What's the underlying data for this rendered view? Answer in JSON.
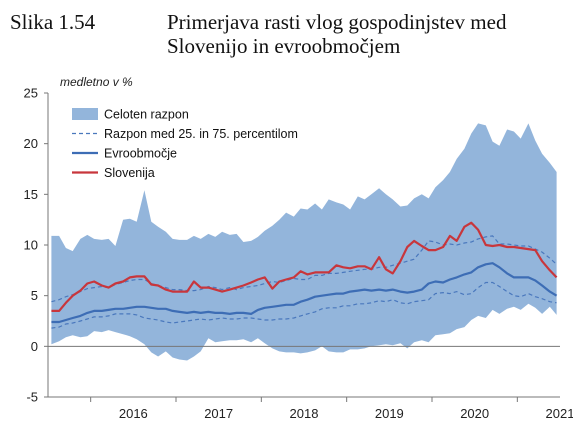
{
  "figure": {
    "label": "Slika 1.54",
    "title": "Primerjava rasti vlog gospodinjstev med Slovenijo in evroobmočjem"
  },
  "chart_data": {
    "type": "area",
    "unit": "medletno v %",
    "ylim": [
      -5,
      25
    ],
    "y_ticks": [
      -5,
      0,
      5,
      10,
      15,
      20,
      25
    ],
    "x_ticks": [
      "2016",
      "2017",
      "2018",
      "2019",
      "2020",
      "2021"
    ],
    "xlim": [
      2015.5,
      2021.5
    ],
    "grid": false,
    "legend_position": "top-left",
    "colors": {
      "range": "#93b5db",
      "percentile": "#4a78bd",
      "euro": "#3d6db5",
      "slovenia": "#c8363c"
    },
    "series": [
      {
        "name": "Celoten razpon",
        "type": "band",
        "x": [
          2015.54,
          2015.63,
          2015.71,
          2015.79,
          2015.88,
          2015.96,
          2016.04,
          2016.13,
          2016.21,
          2016.29,
          2016.38,
          2016.46,
          2016.54,
          2016.63,
          2016.71,
          2016.79,
          2016.88,
          2016.96,
          2017.04,
          2017.13,
          2017.21,
          2017.29,
          2017.38,
          2017.46,
          2017.54,
          2017.63,
          2017.71,
          2017.79,
          2017.88,
          2017.96,
          2018.04,
          2018.13,
          2018.21,
          2018.29,
          2018.38,
          2018.46,
          2018.54,
          2018.63,
          2018.71,
          2018.79,
          2018.88,
          2018.96,
          2019.04,
          2019.13,
          2019.21,
          2019.29,
          2019.38,
          2019.46,
          2019.54,
          2019.63,
          2019.71,
          2019.79,
          2019.88,
          2019.96,
          2020.04,
          2020.13,
          2020.21,
          2020.29,
          2020.38,
          2020.46,
          2020.54,
          2020.63,
          2020.71,
          2020.79,
          2020.88,
          2020.96,
          2021.04,
          2021.13,
          2021.21,
          2021.29,
          2021.38,
          2021.46
        ],
        "upper": [
          10.9,
          10.9,
          9.7,
          9.4,
          10.6,
          11.0,
          10.6,
          10.5,
          10.6,
          9.9,
          12.5,
          12.6,
          12.3,
          15.4,
          12.3,
          11.8,
          11.3,
          10.6,
          10.5,
          10.5,
          10.9,
          10.6,
          11.1,
          10.8,
          11.3,
          11.0,
          11.1,
          10.3,
          10.4,
          10.8,
          11.4,
          11.9,
          12.5,
          13.2,
          12.8,
          13.6,
          13.5,
          14.1,
          13.5,
          14.5,
          14.2,
          14.0,
          13.5,
          14.8,
          14.5,
          15.0,
          15.6,
          15.0,
          14.5,
          13.8,
          13.9,
          14.6,
          15.0,
          14.6,
          15.7,
          16.4,
          17.2,
          18.5,
          19.5,
          21.0,
          22.0,
          21.8,
          20.2,
          19.8,
          21.4,
          21.2,
          20.5,
          22.0,
          20.3,
          19.0,
          18.1,
          17.2
        ],
        "lower": [
          0.2,
          0.5,
          0.9,
          1.1,
          0.9,
          1.0,
          1.5,
          1.4,
          1.6,
          1.4,
          1.2,
          1.0,
          0.7,
          0.2,
          -0.6,
          -1.0,
          -0.5,
          -1.1,
          -1.3,
          -1.4,
          -1.0,
          -0.5,
          0.8,
          0.4,
          0.5,
          0.6,
          0.6,
          0.7,
          0.4,
          0.8,
          0.3,
          -0.2,
          -0.5,
          -0.6,
          -0.6,
          -0.7,
          -0.6,
          -0.4,
          0.0,
          -0.5,
          -0.6,
          -0.6,
          -0.3,
          -0.3,
          -0.2,
          0.0,
          0.1,
          0.2,
          0.1,
          0.3,
          -0.2,
          0.4,
          0.6,
          0.4,
          1.1,
          1.2,
          1.3,
          1.7,
          1.9,
          2.6,
          3.0,
          2.8,
          3.6,
          3.2,
          3.7,
          3.9,
          3.6,
          4.2,
          3.8,
          3.2,
          3.9,
          3.1
        ]
      },
      {
        "name": "Razpon med 25. in 75. percentilom",
        "type": "dashed-pair",
        "x": [
          2015.54,
          2015.63,
          2015.71,
          2015.79,
          2015.88,
          2015.96,
          2016.04,
          2016.13,
          2016.21,
          2016.29,
          2016.38,
          2016.46,
          2016.54,
          2016.63,
          2016.71,
          2016.79,
          2016.88,
          2016.96,
          2017.04,
          2017.13,
          2017.21,
          2017.29,
          2017.38,
          2017.46,
          2017.54,
          2017.63,
          2017.71,
          2017.79,
          2017.88,
          2017.96,
          2018.04,
          2018.13,
          2018.21,
          2018.29,
          2018.38,
          2018.46,
          2018.54,
          2018.63,
          2018.71,
          2018.79,
          2018.88,
          2018.96,
          2019.04,
          2019.13,
          2019.21,
          2019.29,
          2019.38,
          2019.46,
          2019.54,
          2019.63,
          2019.71,
          2019.79,
          2019.88,
          2019.96,
          2020.04,
          2020.13,
          2020.21,
          2020.29,
          2020.38,
          2020.46,
          2020.54,
          2020.63,
          2020.71,
          2020.79,
          2020.88,
          2020.96,
          2021.04,
          2021.13,
          2021.21,
          2021.29,
          2021.38,
          2021.46
        ],
        "upper": [
          4.4,
          4.6,
          4.9,
          5.1,
          5.4,
          5.7,
          5.8,
          5.9,
          5.8,
          6.1,
          6.3,
          6.5,
          6.6,
          6.6,
          6.2,
          6.0,
          5.8,
          5.6,
          5.6,
          5.5,
          5.5,
          5.6,
          5.9,
          5.8,
          5.6,
          5.8,
          5.6,
          5.8,
          5.9,
          6.0,
          6.2,
          6.4,
          6.3,
          6.5,
          6.7,
          6.6,
          6.6,
          7.0,
          7.0,
          7.2,
          7.2,
          7.3,
          7.4,
          7.5,
          7.6,
          7.6,
          7.8,
          7.8,
          8.0,
          8.2,
          8.4,
          8.6,
          9.5,
          10.4,
          10.3,
          10.0,
          10.1,
          10.0,
          10.2,
          10.3,
          10.6,
          10.8,
          10.9,
          10.1,
          10.1,
          10.0,
          9.9,
          9.9,
          9.6,
          9.3,
          8.7,
          8.1
        ],
        "lower": [
          1.8,
          1.9,
          2.2,
          2.3,
          2.5,
          2.7,
          2.9,
          2.9,
          3.0,
          3.2,
          3.2,
          3.2,
          3.1,
          2.8,
          2.7,
          2.6,
          2.4,
          2.3,
          2.4,
          2.5,
          2.6,
          2.7,
          2.6,
          2.7,
          2.8,
          2.7,
          2.7,
          2.8,
          2.8,
          2.7,
          2.6,
          2.6,
          2.7,
          2.7,
          2.8,
          3.0,
          3.2,
          3.4,
          3.7,
          3.8,
          3.8,
          4.0,
          4.0,
          4.2,
          4.2,
          4.3,
          4.5,
          4.4,
          4.6,
          4.3,
          4.2,
          4.4,
          4.5,
          4.6,
          5.2,
          5.3,
          5.2,
          5.4,
          5.1,
          5.2,
          5.8,
          6.3,
          6.3,
          5.9,
          5.4,
          5.0,
          4.9,
          5.2,
          4.9,
          4.7,
          4.4,
          4.3
        ]
      },
      {
        "name": "Evroobmočje",
        "type": "line",
        "x": [
          2015.54,
          2015.63,
          2015.71,
          2015.79,
          2015.88,
          2015.96,
          2016.04,
          2016.13,
          2016.21,
          2016.29,
          2016.38,
          2016.46,
          2016.54,
          2016.63,
          2016.71,
          2016.79,
          2016.88,
          2016.96,
          2017.04,
          2017.13,
          2017.21,
          2017.29,
          2017.38,
          2017.46,
          2017.54,
          2017.63,
          2017.71,
          2017.79,
          2017.88,
          2017.96,
          2018.04,
          2018.13,
          2018.21,
          2018.29,
          2018.38,
          2018.46,
          2018.54,
          2018.63,
          2018.71,
          2018.79,
          2018.88,
          2018.96,
          2019.04,
          2019.13,
          2019.21,
          2019.29,
          2019.38,
          2019.46,
          2019.54,
          2019.63,
          2019.71,
          2019.79,
          2019.88,
          2019.96,
          2020.04,
          2020.13,
          2020.21,
          2020.29,
          2020.38,
          2020.46,
          2020.54,
          2020.63,
          2020.71,
          2020.79,
          2020.88,
          2020.96,
          2021.04,
          2021.13,
          2021.21,
          2021.29,
          2021.38,
          2021.46
        ],
        "values": [
          2.4,
          2.4,
          2.6,
          2.8,
          3.0,
          3.3,
          3.5,
          3.5,
          3.6,
          3.7,
          3.7,
          3.8,
          3.9,
          3.9,
          3.8,
          3.7,
          3.7,
          3.5,
          3.4,
          3.3,
          3.4,
          3.3,
          3.4,
          3.3,
          3.3,
          3.2,
          3.3,
          3.3,
          3.2,
          3.6,
          3.8,
          3.9,
          4.0,
          4.1,
          4.1,
          4.4,
          4.6,
          4.9,
          5.0,
          5.1,
          5.2,
          5.2,
          5.4,
          5.5,
          5.6,
          5.5,
          5.6,
          5.5,
          5.6,
          5.4,
          5.3,
          5.4,
          5.6,
          6.2,
          6.4,
          6.3,
          6.6,
          6.8,
          7.1,
          7.3,
          7.8,
          8.1,
          8.2,
          7.8,
          7.2,
          6.8,
          6.8,
          6.8,
          6.5,
          6.0,
          5.4,
          5.0
        ]
      },
      {
        "name": "Slovenija",
        "type": "line",
        "x": [
          2015.54,
          2015.63,
          2015.71,
          2015.79,
          2015.88,
          2015.96,
          2016.04,
          2016.13,
          2016.21,
          2016.29,
          2016.38,
          2016.46,
          2016.54,
          2016.63,
          2016.71,
          2016.79,
          2016.88,
          2016.96,
          2017.04,
          2017.13,
          2017.21,
          2017.29,
          2017.38,
          2017.46,
          2017.54,
          2017.63,
          2017.71,
          2017.79,
          2017.88,
          2017.96,
          2018.04,
          2018.13,
          2018.21,
          2018.29,
          2018.38,
          2018.46,
          2018.54,
          2018.63,
          2018.71,
          2018.79,
          2018.88,
          2018.96,
          2019.04,
          2019.13,
          2019.21,
          2019.29,
          2019.38,
          2019.46,
          2019.54,
          2019.63,
          2019.71,
          2019.79,
          2019.88,
          2019.96,
          2020.04,
          2020.13,
          2020.21,
          2020.29,
          2020.38,
          2020.46,
          2020.54,
          2020.63,
          2020.71,
          2020.79,
          2020.88,
          2020.96,
          2021.04,
          2021.13,
          2021.21,
          2021.29,
          2021.38,
          2021.46
        ],
        "values": [
          3.5,
          3.5,
          4.3,
          5.0,
          5.5,
          6.2,
          6.4,
          6.0,
          5.8,
          6.2,
          6.4,
          6.8,
          6.9,
          6.9,
          6.1,
          6.0,
          5.6,
          5.4,
          5.4,
          5.4,
          6.4,
          5.8,
          5.8,
          5.6,
          5.4,
          5.6,
          5.8,
          6.0,
          6.3,
          6.6,
          6.8,
          5.7,
          6.4,
          6.6,
          6.8,
          7.4,
          7.1,
          7.3,
          7.3,
          7.3,
          8.0,
          7.8,
          7.7,
          7.9,
          7.9,
          7.6,
          8.8,
          7.6,
          7.2,
          8.4,
          9.8,
          10.4,
          9.9,
          9.5,
          9.5,
          9.8,
          10.9,
          10.4,
          11.8,
          12.2,
          11.5,
          10.0,
          9.9,
          10.0,
          9.8,
          9.8,
          9.7,
          9.6,
          9.5,
          8.4,
          7.5,
          6.8
        ]
      }
    ]
  }
}
